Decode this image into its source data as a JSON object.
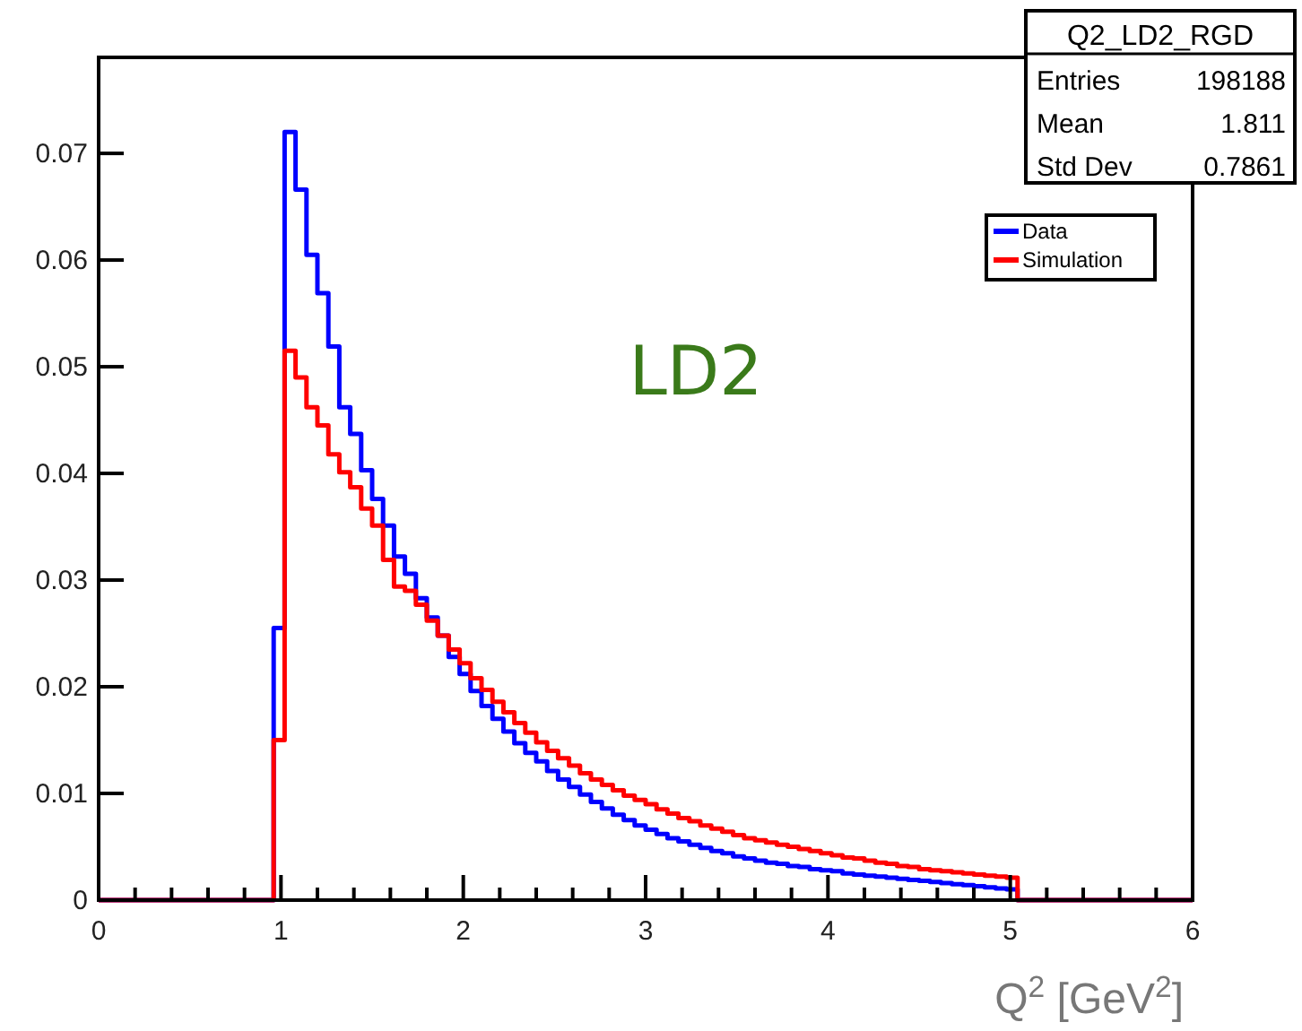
{
  "chart_data": {
    "type": "histogram",
    "xlabel": "Q$^{2}$ [GeV$^{2}$]",
    "bins": [
      0,
      0.06,
      0.12,
      0.18,
      0.24,
      0.3,
      0.36,
      0.42,
      0.48,
      0.54,
      0.6,
      0.66,
      0.72,
      0.78,
      0.84,
      0.9,
      0.96,
      1.02,
      1.08,
      1.14,
      1.2,
      1.26,
      1.32,
      1.38,
      1.44,
      1.5,
      1.56,
      1.62,
      1.68,
      1.74,
      1.8,
      1.86,
      1.92,
      1.98,
      2.04,
      2.1,
      2.16,
      2.22,
      2.28,
      2.34,
      2.4,
      2.46,
      2.52,
      2.58,
      2.64,
      2.7,
      2.76,
      2.82,
      2.88,
      2.94,
      3,
      3.06,
      3.12,
      3.18,
      3.24,
      3.3,
      3.36,
      3.42,
      3.48,
      3.54,
      3.6,
      3.66,
      3.72,
      3.78,
      3.84,
      3.9,
      3.96,
      4.02,
      4.08,
      4.14,
      4.2,
      4.26,
      4.32,
      4.38,
      4.44,
      4.5,
      4.56,
      4.62,
      4.68,
      4.74,
      4.8,
      4.86,
      4.92,
      4.98,
      5.04,
      5.1,
      5.16,
      5.22,
      5.28,
      5.34,
      5.4,
      5.46,
      5.52,
      5.58,
      5.64,
      5.7,
      5.76,
      5.82,
      5.88,
      5.94,
      6
    ],
    "series": [
      {
        "name": "Data",
        "color": "#0000ff",
        "values": [
          0,
          0,
          0,
          0,
          0,
          0,
          0,
          0,
          0,
          0,
          0,
          0,
          0,
          0,
          0,
          0,
          0.0255,
          0.072,
          0.0666,
          0.0605,
          0.0569,
          0.0519,
          0.0462,
          0.0437,
          0.0403,
          0.0376,
          0.0351,
          0.0322,
          0.0306,
          0.0283,
          0.0265,
          0.0248,
          0.0228,
          0.0212,
          0.0196,
          0.0182,
          0.017,
          0.0158,
          0.0147,
          0.0138,
          0.013,
          0.0121,
          0.0113,
          0.0106,
          0.0099,
          0.0092,
          0.0086,
          0.008,
          0.0075,
          0.007,
          0.0066,
          0.0062,
          0.0058,
          0.0055,
          0.0052,
          0.0049,
          0.0046,
          0.0044,
          0.0041,
          0.0039,
          0.0037,
          0.0035,
          0.0034,
          0.0032,
          0.0031,
          0.0029,
          0.0028,
          0.0027,
          0.0025,
          0.0024,
          0.0023,
          0.0022,
          0.0021,
          0.002,
          0.0019,
          0.0018,
          0.0017,
          0.0016,
          0.0015,
          0.0014,
          0.0013,
          0.0012,
          0.0011,
          0.001,
          0,
          0,
          0,
          0,
          0,
          0,
          0,
          0,
          0,
          0,
          0,
          0,
          0,
          0,
          0,
          0
        ]
      },
      {
        "name": "Simulation",
        "color": "#ff0000",
        "values": [
          0,
          0,
          0,
          0,
          0,
          0,
          0,
          0,
          0,
          0,
          0,
          0,
          0,
          0,
          0,
          0,
          0.015,
          0.0515,
          0.049,
          0.0462,
          0.0445,
          0.0418,
          0.0401,
          0.0387,
          0.0367,
          0.0351,
          0.0319,
          0.0294,
          0.029,
          0.0277,
          0.0262,
          0.0248,
          0.0235,
          0.0222,
          0.0208,
          0.0197,
          0.0186,
          0.0176,
          0.0166,
          0.0157,
          0.0148,
          0.014,
          0.0133,
          0.0126,
          0.0119,
          0.0113,
          0.0108,
          0.0103,
          0.0098,
          0.0094,
          0.009,
          0.0085,
          0.0081,
          0.0077,
          0.0074,
          0.007,
          0.0067,
          0.0064,
          0.0061,
          0.0058,
          0.0056,
          0.0054,
          0.0052,
          0.005,
          0.0048,
          0.0046,
          0.0044,
          0.0042,
          0.004,
          0.0039,
          0.0037,
          0.0035,
          0.0034,
          0.0032,
          0.0031,
          0.0029,
          0.0028,
          0.0027,
          0.0026,
          0.0025,
          0.0024,
          0.0023,
          0.0022,
          0.0021,
          0,
          0,
          0,
          0,
          0,
          0,
          0,
          0,
          0,
          0,
          0,
          0,
          0,
          0,
          0,
          0
        ]
      }
    ],
    "xlim": [
      0,
      6
    ],
    "xticks": [
      0,
      1,
      2,
      3,
      4,
      5,
      6
    ],
    "ylim": [
      0,
      0.079
    ],
    "yticks": [
      0,
      0.01,
      0.02,
      0.03,
      0.04,
      0.05,
      0.06,
      0.07
    ],
    "legend": "top right",
    "grid": false,
    "annotations": [
      "Q2_LD2_RGD",
      "Entries 198188",
      "Mean 1.811",
      "Std Dev 0.7861",
      "LD2"
    ]
  }
}
